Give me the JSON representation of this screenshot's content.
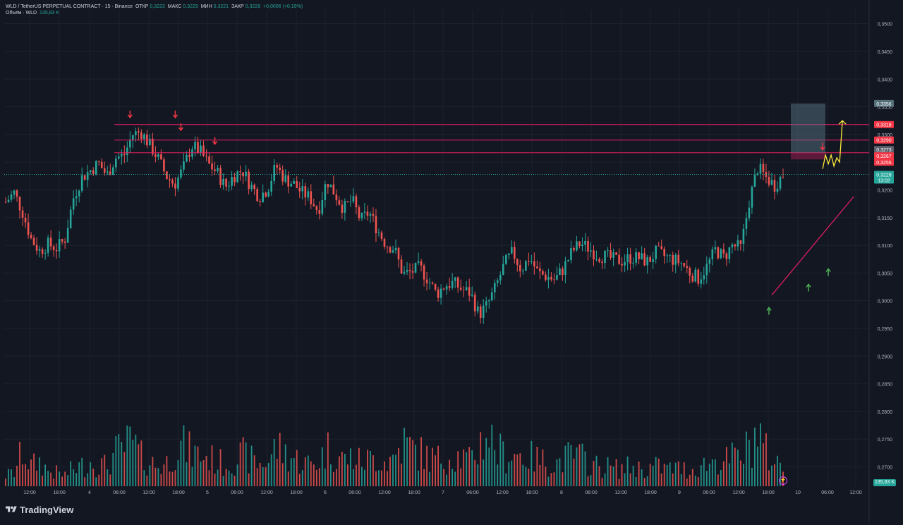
{
  "header": {
    "symbol": "WLD / TetherUS PERPETUAL CONTRACT · 15 · Binance",
    "open_label": "ОТКР",
    "open_value": "0,3223",
    "high_label": "МАКС",
    "high_value": "0,3229",
    "low_label": "МИН",
    "low_value": "0,3221",
    "close_label": "ЗАКР",
    "close_value": "0,3228",
    "change": "+0,0006 (+0,19%)",
    "volume_label": "Объём · WLD",
    "volume_value": "135,83 K"
  },
  "brand": {
    "name": "TradingView"
  },
  "colors": {
    "background": "#131722",
    "up": "#26a69a",
    "down": "#ef5350",
    "resistance": "#e91e63",
    "trendline": "#e91e63",
    "projection": "#ffeb3b",
    "zone": "#607d8b",
    "price_badge": "#26a69a"
  },
  "chart_data": {
    "type": "candlestick",
    "y_ticks": [
      "0,3500",
      "0,3450",
      "0,3400",
      "0,3350",
      "0,3300",
      "0,3250",
      "0,3200",
      "0,3150",
      "0,3100",
      "0,3050",
      "0,3000",
      "0,2950",
      "0,2900",
      "0,2850",
      "0,2800",
      "0,2750",
      "0,2700"
    ],
    "ylim": [
      0.2665,
      0.3525
    ],
    "x_ticks": [
      "12:00",
      "18:00",
      "4",
      "06:00",
      "12:00",
      "18:00",
      "5",
      "06:00",
      "12:00",
      "18:00",
      "6",
      "06:00",
      "12:00",
      "18:00",
      "7",
      "06:00",
      "12:00",
      "18:00",
      "8",
      "06:00",
      "12:00",
      "18:00",
      "9",
      "06:00",
      "12:00",
      "18:00",
      "10",
      "06:00",
      "12:00"
    ],
    "close_path": [
      0.3178,
      0.3195,
      0.316,
      0.3112,
      0.309,
      0.3102,
      0.3095,
      0.311,
      0.3185,
      0.3222,
      0.3235,
      0.3248,
      0.3226,
      0.3258,
      0.3262,
      0.33,
      0.3305,
      0.3282,
      0.3258,
      0.3225,
      0.321,
      0.3238,
      0.328,
      0.327,
      0.3246,
      0.3232,
      0.3205,
      0.3226,
      0.3236,
      0.3208,
      0.3188,
      0.3202,
      0.3244,
      0.322,
      0.3212,
      0.3196,
      0.3186,
      0.3162,
      0.3218,
      0.3192,
      0.3166,
      0.3182,
      0.3145,
      0.316,
      0.3128,
      0.3102,
      0.3094,
      0.3048,
      0.3052,
      0.306,
      0.3038,
      0.3012,
      0.3028,
      0.3032,
      0.302,
      0.3014,
      0.2975,
      0.2992,
      0.3025,
      0.3065,
      0.3088,
      0.3056,
      0.3078,
      0.305,
      0.3044,
      0.3038,
      0.3058,
      0.3088,
      0.3104,
      0.3095,
      0.3082,
      0.308,
      0.3074,
      0.3072,
      0.3078,
      0.3077,
      0.307,
      0.3088,
      0.308,
      0.3074,
      0.3068,
      0.305,
      0.304,
      0.3062,
      0.3092,
      0.3078,
      0.31,
      0.3095,
      0.318,
      0.324,
      0.3222,
      0.3208,
      0.3228
    ],
    "volume_path": [
      0.1,
      0.12,
      0.32,
      0.18,
      0.22,
      0.14,
      0.12,
      0.1,
      0.16,
      0.18,
      0.22,
      0.2,
      0.18,
      0.3,
      0.34,
      0.4,
      0.26,
      0.22,
      0.18,
      0.2,
      0.34,
      0.36,
      0.3,
      0.28,
      0.26,
      0.22,
      0.2,
      0.24,
      0.28,
      0.24,
      0.2,
      0.22,
      0.36,
      0.3,
      0.26,
      0.22,
      0.2,
      0.22,
      0.34,
      0.3,
      0.24,
      0.26,
      0.22,
      0.24,
      0.26,
      0.22,
      0.26,
      0.4,
      0.34,
      0.3,
      0.26,
      0.24,
      0.26,
      0.28,
      0.26,
      0.22,
      0.36,
      0.5,
      0.34,
      0.28,
      0.3,
      0.28,
      0.26,
      0.24,
      0.22,
      0.2,
      0.24,
      0.28,
      0.26,
      0.22,
      0.18,
      0.18,
      0.16,
      0.16,
      0.18,
      0.16,
      0.16,
      0.18,
      0.16,
      0.16,
      0.16,
      0.14,
      0.18,
      0.2,
      0.24,
      0.22,
      0.26,
      0.26,
      0.36,
      0.5,
      0.3,
      0.22,
      0.18
    ],
    "candle_count": 276,
    "seed": 7,
    "resistance_levels": [
      0.3318,
      0.329,
      0.3267
    ],
    "price_labels": [
      {
        "value": 0.3356,
        "text": "0,3356",
        "style": "zone"
      },
      {
        "value": 0.3318,
        "text": "0,3318",
        "style": "red"
      },
      {
        "value": 0.329,
        "text": "0,3290",
        "style": "red"
      },
      {
        "value": 0.3273,
        "text": "0,3273",
        "style": "gray"
      },
      {
        "value": 0.3267,
        "text": "0,3267",
        "style": "red"
      },
      {
        "value": 0.3255,
        "text": "0,3255",
        "style": "red"
      }
    ],
    "current_price": {
      "value": 0.3228,
      "text": "0,3228",
      "countdown": "13:02"
    },
    "volume_badge": "135,83 K",
    "target_zone": {
      "top": 0.3356,
      "bottom": 0.3267,
      "red_bottom": 0.3255
    },
    "trendline": [
      {
        "x_index": 271,
        "value": 0.301
      },
      {
        "x_index": 300,
        "value": 0.3188
      }
    ],
    "down_markers": [
      {
        "x_index": 44,
        "value": 0.3328
      },
      {
        "x_index": 60,
        "value": 0.3328
      },
      {
        "x_index": 62,
        "value": 0.3305
      },
      {
        "x_index": 74,
        "value": 0.328
      },
      {
        "x_index": 289,
        "value": 0.327
      }
    ],
    "up_markers": [
      {
        "x_index": 270,
        "value": 0.299
      },
      {
        "x_index": 284,
        "value": 0.3032
      },
      {
        "x_index": 291,
        "value": 0.306
      }
    ],
    "projection_path": [
      {
        "x_index": 289,
        "value": 0.3238
      },
      {
        "x_index": 290,
        "value": 0.3263
      },
      {
        "x_index": 291,
        "value": 0.3247
      },
      {
        "x_index": 292,
        "value": 0.3263
      },
      {
        "x_index": 293,
        "value": 0.3243
      },
      {
        "x_index": 294,
        "value": 0.3258
      },
      {
        "x_index": 295,
        "value": 0.325
      },
      {
        "x_index": 296,
        "value": 0.3325
      }
    ]
  }
}
